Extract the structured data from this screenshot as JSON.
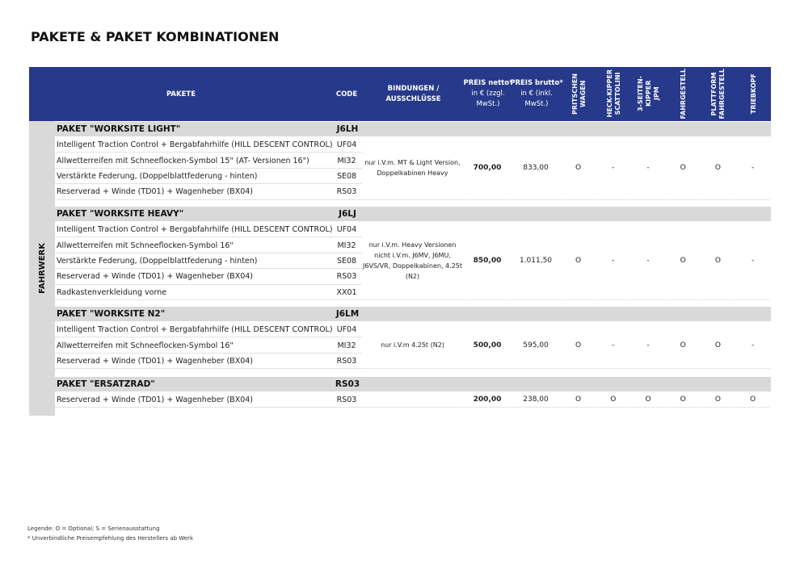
{
  "title": "PAKETE & PAKET KOMBINATIONEN",
  "table": {
    "side_label": "FAHRWERK",
    "headers": {
      "pakete": "PAKETE",
      "code": "CODE",
      "bindungen": [
        "BINDUNGEN /",
        "AUSSCHLÜSSE"
      ],
      "netto": [
        "PREIS netto*",
        "in € (zzgl.",
        "MwSt.)"
      ],
      "brutto": [
        "PREIS brutto*",
        "in € (inkl.",
        "MwSt.)"
      ],
      "bodies": [
        [
          "PRITSCHEN",
          "WAGEN"
        ],
        [
          "HECK-KIPPER",
          "SCATTOLINI"
        ],
        [
          "3-SEITEN-",
          "KIPPER",
          "JPM"
        ],
        [
          "FAHRGESTELL"
        ],
        [
          "PLATTFORM",
          "FAHRGESTELL"
        ],
        [
          "TRIEBKOPF"
        ]
      ]
    },
    "groups": [
      {
        "name": "PAKET \"WORKSITE LIGHT\"",
        "code": "J6LH",
        "rows": [
          [
            "Intelligent Traction Control + Bergabfahrhilfe (HILL DESCENT CONTROL)",
            "UF04"
          ],
          [
            "Allwetterreifen mit Schneeflocken-Symbol  15\" (AT- Versionen 16\")",
            "MI32"
          ],
          [
            "Verstärkte Federung, (Doppelblattfederung - hinten)",
            "SE08"
          ],
          [
            "Reserverad + Winde (TD01) + Wagenheber (BX04)",
            "RS03"
          ]
        ],
        "bindung": [
          "nur i.V.m. MT & Light Version,",
          "Doppelkabinen Heavy"
        ],
        "netto": "700,00",
        "brutto": "833,00",
        "marks": [
          "O",
          "-",
          "-",
          "O",
          "O",
          "-"
        ]
      },
      {
        "name": "PAKET \"WORKSITE HEAVY\"",
        "code": "J6LJ",
        "rows": [
          [
            "Intelligent Traction Control + Bergabfahrhilfe (HILL DESCENT CONTROL)",
            "UF04"
          ],
          [
            "Allwetterreifen mit Schneeflocken-Symbol 16\"",
            "MI32"
          ],
          [
            "Verstärkte Federung, (Doppelblattfederung - hinten)",
            "SE08"
          ],
          [
            "Reserverad + Winde (TD01) + Wagenheber (BX04)",
            "RS03"
          ],
          [
            "Radkastenverkleidung vorne",
            "XX01"
          ]
        ],
        "bindung": [
          "nur i.V.m. Heavy Versionen",
          "nicht i.V.m. J6MV, J6MU,",
          "J6VS/VR, Doppelkabinen, 4.25t",
          "(N2)"
        ],
        "netto": "850,00",
        "brutto": "1.011,50",
        "marks": [
          "O",
          "-",
          "-",
          "O",
          "O",
          "-"
        ]
      },
      {
        "name": "PAKET \"WORKSITE N2\"",
        "code": "J6LM",
        "rows": [
          [
            "Intelligent Traction Control + Bergabfahrhilfe (HILL DESCENT CONTROL)",
            "UF04"
          ],
          [
            "Allwetterreifen mit Schneeflocken-Symbol 16\"",
            "MI32"
          ],
          [
            "Reserverad + Winde (TD01) + Wagenheber (BX04)",
            "RS03"
          ]
        ],
        "bindung": [
          "nur i.V.m 4.25t (N2)"
        ],
        "netto": "500,00",
        "brutto": "595,00",
        "marks": [
          "O",
          "-",
          "-",
          "O",
          "O",
          "-"
        ]
      },
      {
        "name": "PAKET \"ERSATZRAD\"",
        "code": "RS03",
        "rows": [
          [
            "Reserverad + Winde (TD01) + Wagenheber (BX04)",
            "RS03"
          ]
        ],
        "netto": "200,00",
        "brutto": "238,00",
        "marks": [
          "O",
          "O",
          "O",
          "O",
          "O",
          "O"
        ]
      }
    ]
  },
  "footer": [
    "Legende: O = Optional; S = Serienausstattung",
    "* Unverbindliche Preisempfehlung des Herstellers ab Werk"
  ]
}
